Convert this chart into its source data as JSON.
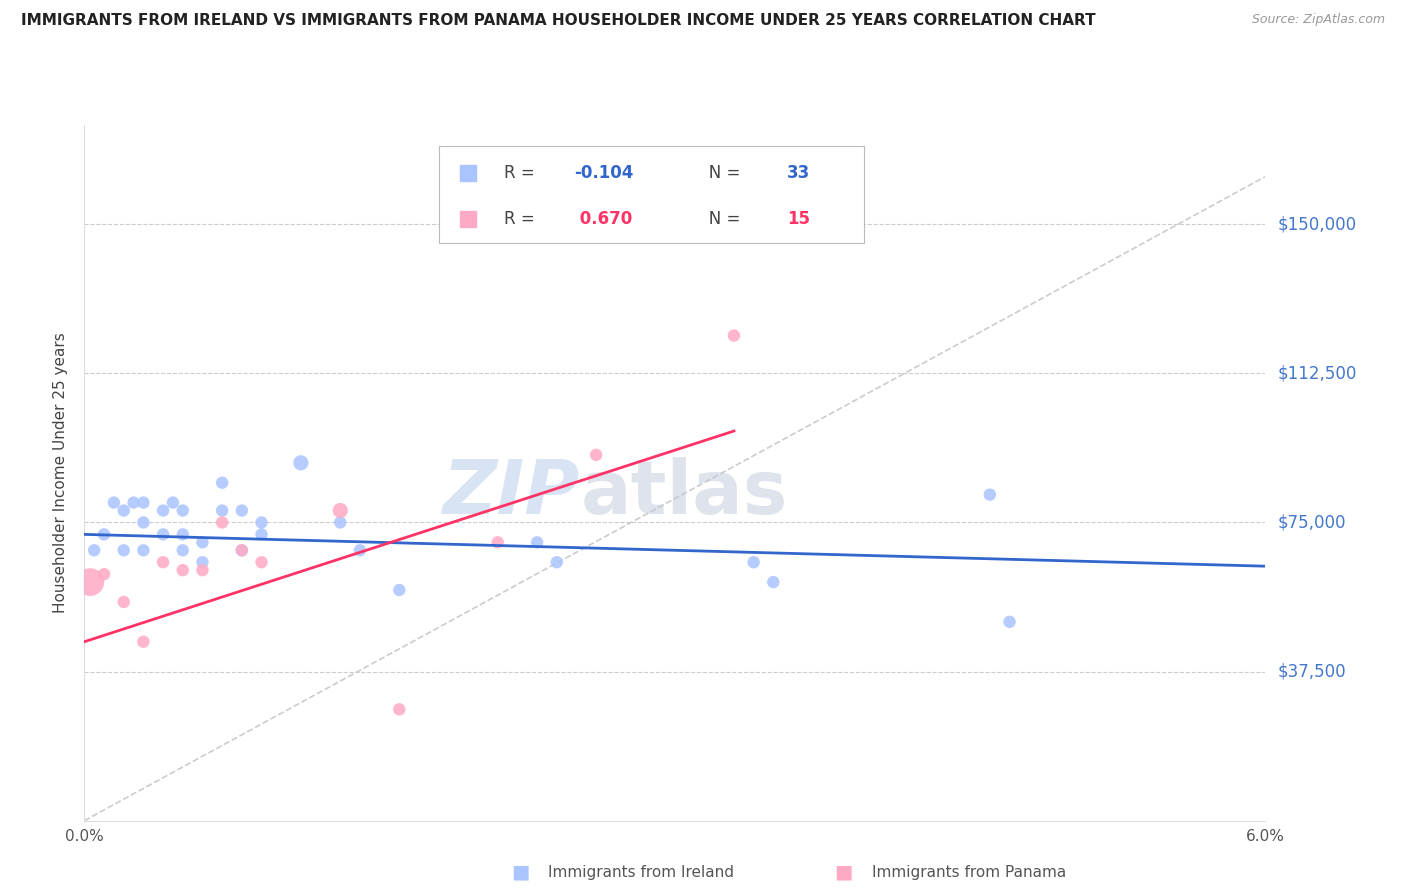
{
  "title": "IMMIGRANTS FROM IRELAND VS IMMIGRANTS FROM PANAMA HOUSEHOLDER INCOME UNDER 25 YEARS CORRELATION CHART",
  "source": "Source: ZipAtlas.com",
  "ylabel": "Householder Income Under 25 years",
  "xlim": [
    0.0,
    0.06
  ],
  "ylim": [
    0,
    175000
  ],
  "yticks": [
    37500,
    75000,
    112500,
    150000
  ],
  "ytick_labels": [
    "$37,500",
    "$75,000",
    "$112,500",
    "$150,000"
  ],
  "xticks": [
    0.0,
    0.01,
    0.02,
    0.03,
    0.04,
    0.05,
    0.06
  ],
  "xtick_labels": [
    "0.0%",
    "",
    "",
    "",
    "",
    "",
    "6.0%"
  ],
  "background_color": "#ffffff",
  "grid_color": "#cccccc",
  "ireland_color": "#aac4ff",
  "panama_color": "#ffaac4",
  "ireland_line_color": "#3366cc",
  "panama_line_color": "#ff3366",
  "diag_line_color": "#cccccc",
  "legend_ireland_R": "-0.104",
  "legend_ireland_N": "33",
  "legend_panama_R": "0.670",
  "legend_panama_N": "15",
  "watermark_zip": "ZIP",
  "watermark_atlas": "atlas",
  "ireland_scatter_x": [
    0.0005,
    0.001,
    0.0015,
    0.002,
    0.002,
    0.0025,
    0.003,
    0.003,
    0.003,
    0.004,
    0.004,
    0.0045,
    0.005,
    0.005,
    0.005,
    0.006,
    0.006,
    0.007,
    0.007,
    0.008,
    0.008,
    0.009,
    0.009,
    0.011,
    0.013,
    0.014,
    0.016,
    0.023,
    0.024,
    0.034,
    0.035,
    0.046,
    0.047
  ],
  "ireland_scatter_y": [
    68000,
    72000,
    80000,
    78000,
    68000,
    80000,
    80000,
    75000,
    68000,
    78000,
    72000,
    80000,
    78000,
    72000,
    68000,
    70000,
    65000,
    85000,
    78000,
    78000,
    68000,
    75000,
    72000,
    90000,
    75000,
    68000,
    58000,
    70000,
    65000,
    65000,
    60000,
    82000,
    50000
  ],
  "ireland_scatter_size": [
    80,
    80,
    80,
    80,
    80,
    80,
    80,
    80,
    80,
    80,
    80,
    80,
    80,
    80,
    80,
    80,
    80,
    80,
    80,
    80,
    80,
    80,
    80,
    120,
    80,
    80,
    80,
    80,
    80,
    80,
    80,
    80,
    80
  ],
  "panama_scatter_x": [
    0.0003,
    0.001,
    0.002,
    0.003,
    0.004,
    0.005,
    0.006,
    0.007,
    0.008,
    0.009,
    0.013,
    0.016,
    0.021,
    0.026,
    0.033
  ],
  "panama_scatter_y": [
    60000,
    62000,
    55000,
    45000,
    65000,
    63000,
    63000,
    75000,
    68000,
    65000,
    78000,
    28000,
    70000,
    92000,
    122000
  ],
  "panama_scatter_size": [
    400,
    80,
    80,
    80,
    80,
    80,
    80,
    80,
    80,
    80,
    120,
    80,
    80,
    80,
    80
  ],
  "ireland_line_x": [
    0.0,
    0.06
  ],
  "ireland_line_y": [
    72000,
    64000
  ],
  "panama_line_x": [
    0.0,
    0.033
  ],
  "panama_line_y": [
    45000,
    98000
  ]
}
